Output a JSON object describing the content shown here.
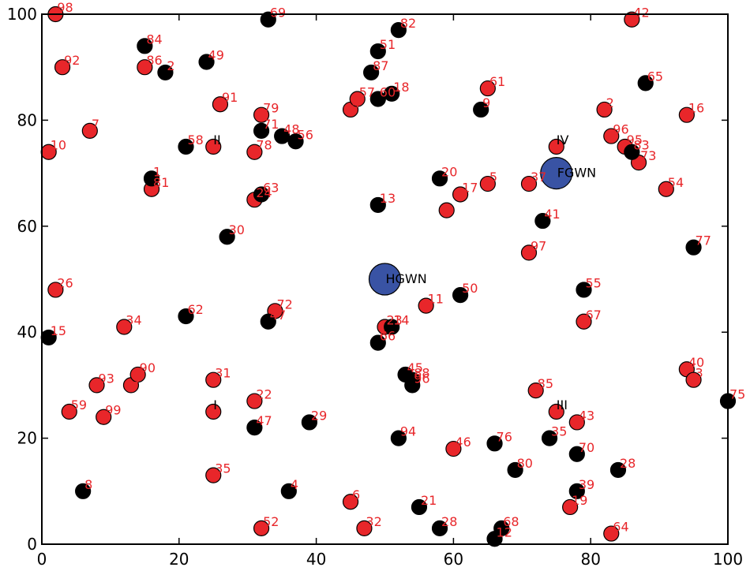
{
  "chart_data": {
    "type": "scatter",
    "title": "",
    "xlabel": "",
    "ylabel": "",
    "xlim": [
      0,
      100
    ],
    "ylim": [
      0,
      100
    ],
    "x_ticks": [
      0,
      20,
      40,
      60,
      80,
      100
    ],
    "y_ticks": [
      0,
      20,
      40,
      60,
      80,
      100
    ],
    "x_tick_labels": [
      "0",
      "20",
      "40",
      "60",
      "80",
      "100"
    ],
    "y_tick_labels": [
      "0",
      "20",
      "40",
      "60",
      "80",
      "100"
    ],
    "grid": false,
    "legend": "none",
    "colors": {
      "red": "#e8262a",
      "black": "#000000",
      "blue": "#3953a4",
      "red_label": "#e8262a",
      "black_label": "#000000"
    },
    "series": [
      {
        "color": "red",
        "points": [
          {
            "x": 2,
            "y": 100,
            "label": "98"
          },
          {
            "x": 3,
            "y": 90,
            "label": "92"
          },
          {
            "x": 15,
            "y": 90,
            "label": "86"
          },
          {
            "x": 7,
            "y": 78,
            "label": "7"
          },
          {
            "x": 1,
            "y": 74,
            "label": "10"
          },
          {
            "x": 16,
            "y": 67,
            "label": "81"
          },
          {
            "x": 26,
            "y": 83,
            "label": "91"
          },
          {
            "x": 32,
            "y": 81,
            "label": "79"
          },
          {
            "x": 25,
            "y": 75,
            "label": ""
          },
          {
            "x": 31,
            "y": 74,
            "label": "78"
          },
          {
            "x": 31,
            "y": 65,
            "label": "24"
          },
          {
            "x": 45,
            "y": 82,
            "label": "4"
          },
          {
            "x": 46,
            "y": 84,
            "label": "57"
          },
          {
            "x": 65,
            "y": 86,
            "label": "61"
          },
          {
            "x": 86,
            "y": 99,
            "label": "42"
          },
          {
            "x": 82,
            "y": 82,
            "label": "2"
          },
          {
            "x": 94,
            "y": 81,
            "label": "16"
          },
          {
            "x": 83,
            "y": 77,
            "label": "96"
          },
          {
            "x": 85,
            "y": 75,
            "label": "95"
          },
          {
            "x": 87,
            "y": 72,
            "label": "73"
          },
          {
            "x": 75,
            "y": 75,
            "label": ""
          },
          {
            "x": 91,
            "y": 67,
            "label": "54"
          },
          {
            "x": 71,
            "y": 68,
            "label": "37"
          },
          {
            "x": 65,
            "y": 68,
            "label": "5"
          },
          {
            "x": 61,
            "y": 66,
            "label": "17"
          },
          {
            "x": 59,
            "y": 63,
            "label": ""
          },
          {
            "x": 71,
            "y": 55,
            "label": "97"
          },
          {
            "x": 2,
            "y": 48,
            "label": "26"
          },
          {
            "x": 12,
            "y": 41,
            "label": "34"
          },
          {
            "x": 34,
            "y": 44,
            "label": "72"
          },
          {
            "x": 50,
            "y": 41,
            "label": "23"
          },
          {
            "x": 56,
            "y": 45,
            "label": "11"
          },
          {
            "x": 79,
            "y": 42,
            "label": "67"
          },
          {
            "x": 8,
            "y": 30,
            "label": "93"
          },
          {
            "x": 13,
            "y": 30,
            "label": "9"
          },
          {
            "x": 14,
            "y": 32,
            "label": "90"
          },
          {
            "x": 4,
            "y": 25,
            "label": "59"
          },
          {
            "x": 9,
            "y": 24,
            "label": "99"
          },
          {
            "x": 25,
            "y": 31,
            "label": "31"
          },
          {
            "x": 25,
            "y": 25,
            "label": ""
          },
          {
            "x": 31,
            "y": 27,
            "label": "22"
          },
          {
            "x": 25,
            "y": 13,
            "label": "35"
          },
          {
            "x": 72,
            "y": 29,
            "label": "85"
          },
          {
            "x": 75,
            "y": 25,
            "label": ""
          },
          {
            "x": 78,
            "y": 23,
            "label": "43"
          },
          {
            "x": 94,
            "y": 33,
            "label": "40"
          },
          {
            "x": 95,
            "y": 31,
            "label": "3"
          },
          {
            "x": 60,
            "y": 18,
            "label": "46"
          },
          {
            "x": 45,
            "y": 8,
            "label": "6"
          },
          {
            "x": 32,
            "y": 3,
            "label": "52"
          },
          {
            "x": 47,
            "y": 3,
            "label": "32"
          },
          {
            "x": 77,
            "y": 7,
            "label": "19"
          },
          {
            "x": 83,
            "y": 2,
            "label": "64"
          }
        ]
      },
      {
        "color": "black",
        "points": [
          {
            "x": 33,
            "y": 99,
            "label": "69"
          },
          {
            "x": 15,
            "y": 94,
            "label": "84"
          },
          {
            "x": 18,
            "y": 89,
            "label": "2"
          },
          {
            "x": 24,
            "y": 91,
            "label": "49"
          },
          {
            "x": 52,
            "y": 97,
            "label": "82"
          },
          {
            "x": 49,
            "y": 93,
            "label": "51"
          },
          {
            "x": 48,
            "y": 89,
            "label": "87"
          },
          {
            "x": 49,
            "y": 84,
            "label": "60"
          },
          {
            "x": 51,
            "y": 85,
            "label": "18"
          },
          {
            "x": 64,
            "y": 82,
            "label": "9"
          },
          {
            "x": 88,
            "y": 87,
            "label": "65"
          },
          {
            "x": 86,
            "y": 74,
            "label": "83"
          },
          {
            "x": 21,
            "y": 75,
            "label": "58"
          },
          {
            "x": 32,
            "y": 78,
            "label": "71"
          },
          {
            "x": 35,
            "y": 77,
            "label": "48"
          },
          {
            "x": 37,
            "y": 76,
            "label": "56"
          },
          {
            "x": 16,
            "y": 69,
            "label": "1"
          },
          {
            "x": 32,
            "y": 66,
            "label": "63"
          },
          {
            "x": 27,
            "y": 58,
            "label": "30"
          },
          {
            "x": 49,
            "y": 64,
            "label": "13"
          },
          {
            "x": 58,
            "y": 69,
            "label": "20"
          },
          {
            "x": 73,
            "y": 61,
            "label": "41"
          },
          {
            "x": 95,
            "y": 56,
            "label": "77"
          },
          {
            "x": 61,
            "y": 47,
            "label": "50"
          },
          {
            "x": 79,
            "y": 48,
            "label": "55"
          },
          {
            "x": 1,
            "y": 39,
            "label": "15"
          },
          {
            "x": 21,
            "y": 43,
            "label": "62"
          },
          {
            "x": 33,
            "y": 42,
            "label": "47"
          },
          {
            "x": 51,
            "y": 41,
            "label": "14"
          },
          {
            "x": 49,
            "y": 38,
            "label": "66"
          },
          {
            "x": 53,
            "y": 32,
            "label": "45"
          },
          {
            "x": 54,
            "y": 31,
            "label": "88"
          },
          {
            "x": 54,
            "y": 30,
            "label": "96"
          },
          {
            "x": 31,
            "y": 22,
            "label": "47"
          },
          {
            "x": 39,
            "y": 23,
            "label": "29"
          },
          {
            "x": 52,
            "y": 20,
            "label": "94"
          },
          {
            "x": 66,
            "y": 19,
            "label": "76"
          },
          {
            "x": 74,
            "y": 20,
            "label": "35"
          },
          {
            "x": 78,
            "y": 17,
            "label": "70"
          },
          {
            "x": 69,
            "y": 14,
            "label": "80"
          },
          {
            "x": 84,
            "y": 14,
            "label": "28"
          },
          {
            "x": 78,
            "y": 10,
            "label": "39"
          },
          {
            "x": 100,
            "y": 27,
            "label": "75"
          },
          {
            "x": 6,
            "y": 10,
            "label": "8"
          },
          {
            "x": 36,
            "y": 10,
            "label": "4"
          },
          {
            "x": 55,
            "y": 7,
            "label": "21"
          },
          {
            "x": 58,
            "y": 3,
            "label": "28"
          },
          {
            "x": 67,
            "y": 3,
            "label": "68"
          },
          {
            "x": 66,
            "y": 1,
            "label": "12"
          }
        ]
      },
      {
        "color": "blue",
        "points": [
          {
            "x": 50,
            "y": 50,
            "label": "HGWN"
          },
          {
            "x": 75,
            "y": 70,
            "label": "FGWN"
          }
        ]
      }
    ],
    "annotations": [
      {
        "x": 25,
        "y": 75,
        "text": "II"
      },
      {
        "x": 75,
        "y": 75,
        "text": "IV"
      },
      {
        "x": 25,
        "y": 25,
        "text": "I"
      },
      {
        "x": 75,
        "y": 25,
        "text": "III"
      }
    ]
  }
}
